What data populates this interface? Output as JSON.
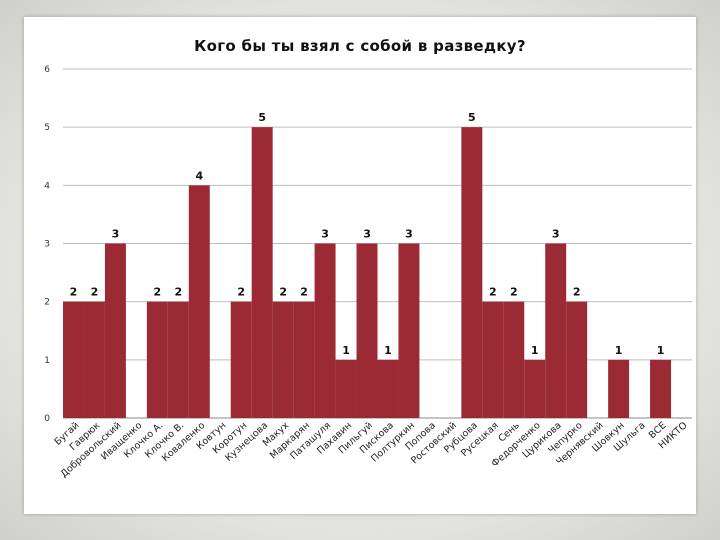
{
  "chart_data": {
    "type": "bar",
    "title": "Кого бы ты взял с собой в разведку?",
    "xlabel": "",
    "ylabel": "",
    "ylim": [
      0,
      6
    ],
    "yticks": [
      0,
      1,
      2,
      3,
      4,
      5,
      6
    ],
    "grid": true,
    "legend": "none",
    "bar_color": "#9b2a35",
    "categories": [
      "Бугай",
      "Гаврюк",
      "Добровольский",
      "Иващенко",
      "Клочко А.",
      "Клочко В.",
      "Коваленко",
      "Ковтун",
      "Коротун",
      "Кузнецова",
      "Макух",
      "Маркарян",
      "Паташуля",
      "Пахавин",
      "Пильгуй",
      "Пискова",
      "Полтуркин",
      "Попова",
      "Ростовский",
      "Рубцова",
      "Русецкая",
      "Сень",
      "Федорченко",
      "Цурикова",
      "Чепурко",
      "Чернявский",
      "Шовкун",
      "Шульга",
      "ВСЕ",
      "НИКТО"
    ],
    "values": [
      2,
      2,
      3,
      null,
      2,
      2,
      4,
      null,
      2,
      5,
      2,
      2,
      3,
      1,
      3,
      1,
      3,
      null,
      null,
      5,
      2,
      2,
      1,
      3,
      2,
      null,
      1,
      null,
      1,
      null
    ],
    "data_labels": [
      "2",
      "2",
      "3",
      "",
      "2",
      "2",
      "4",
      "",
      "2",
      "5",
      "2",
      "2",
      "3",
      "1",
      "3",
      "1",
      "3",
      "",
      "",
      "5",
      "2",
      "2",
      "1",
      "3",
      "2",
      "",
      "1",
      "",
      "1",
      ""
    ]
  }
}
